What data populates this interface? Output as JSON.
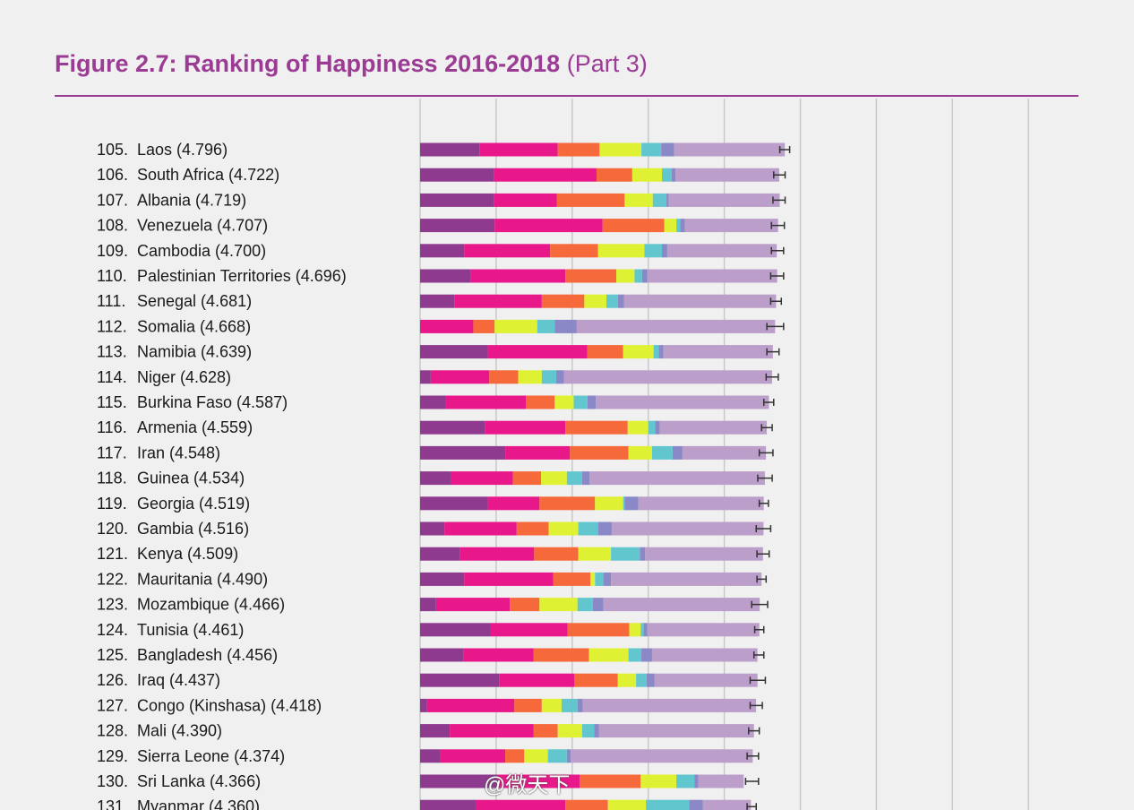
{
  "title": {
    "main": "Figure 2.7: Ranking of Happiness 2016-2018",
    "sub": "(Part 3)"
  },
  "colors": {
    "segments": [
      "#8e3a8e",
      "#e8178a",
      "#f5693a",
      "#dff133",
      "#62c6cf",
      "#8a88c6",
      "#bb9ec9"
    ],
    "errorbar": "#333333",
    "gridline": "#c8c8c8",
    "title": "#9b3b93"
  },
  "chart_data": {
    "type": "bar",
    "orientation": "horizontal",
    "stacked": true,
    "title": "Figure 2.7: Ranking of Happiness 2016-2018 (Part 3)",
    "xlim": [
      0,
      8
    ],
    "x_gridlines": [
      0,
      1,
      2,
      3,
      4,
      5,
      6,
      7,
      8
    ],
    "segment_order": [
      "dark-purple",
      "magenta",
      "orange",
      "yellow-green",
      "teal",
      "blue-violet",
      "lavender"
    ],
    "rows": [
      {
        "rank": "105.",
        "name": "Laos (4.796)",
        "score": 4.796,
        "segments": [
          0.78,
          1.03,
          0.55,
          0.55,
          0.26,
          0.17,
          1.456
        ],
        "ci": [
          4.73,
          4.86
        ]
      },
      {
        "rank": "106.",
        "name": "South Africa (4.722)",
        "score": 4.722,
        "segments": [
          0.97,
          1.35,
          0.47,
          0.39,
          0.13,
          0.05,
          1.362
        ],
        "ci": [
          4.65,
          4.8
        ]
      },
      {
        "rank": "107.",
        "name": "Albania (4.719)",
        "score": 4.719,
        "segments": [
          0.97,
          0.83,
          0.89,
          0.37,
          0.18,
          0.03,
          1.459
        ],
        "ci": [
          4.64,
          4.8
        ]
      },
      {
        "rank": "108.",
        "name": "Venezuela (4.707)",
        "score": 4.707,
        "segments": [
          0.98,
          1.42,
          0.81,
          0.16,
          0.05,
          0.06,
          1.227
        ],
        "ci": [
          4.62,
          4.79
        ]
      },
      {
        "rank": "109.",
        "name": "Cambodia (4.700)",
        "score": 4.7,
        "segments": [
          0.58,
          1.13,
          0.63,
          0.61,
          0.23,
          0.07,
          1.44
        ],
        "ci": [
          4.62,
          4.78
        ]
      },
      {
        "rank": "110.",
        "name": "Palestinian Territories (4.696)",
        "score": 4.696,
        "segments": [
          0.67,
          1.24,
          0.67,
          0.24,
          0.1,
          0.07,
          1.706
        ],
        "ci": [
          4.61,
          4.78
        ]
      },
      {
        "rank": "111.",
        "name": "Senegal (4.681)",
        "score": 4.681,
        "segments": [
          0.45,
          1.15,
          0.56,
          0.29,
          0.15,
          0.08,
          2.001
        ],
        "ci": [
          4.61,
          4.75
        ]
      },
      {
        "rank": "112.",
        "name": "Somalia (4.668)",
        "score": 4.668,
        "segments": [
          0.0,
          0.7,
          0.28,
          0.56,
          0.23,
          0.29,
          2.608
        ],
        "ci": [
          4.56,
          4.78
        ]
      },
      {
        "rank": "113.",
        "name": "Namibia (4.639)",
        "score": 4.639,
        "segments": [
          0.89,
          1.31,
          0.47,
          0.4,
          0.07,
          0.06,
          1.439
        ],
        "ci": [
          4.56,
          4.72
        ]
      },
      {
        "rank": "114.",
        "name": "Niger (4.628)",
        "score": 4.628,
        "segments": [
          0.14,
          0.77,
          0.38,
          0.31,
          0.19,
          0.1,
          2.738
        ],
        "ci": [
          4.55,
          4.71
        ]
      },
      {
        "rank": "115.",
        "name": "Burkina Faso (4.587)",
        "score": 4.587,
        "segments": [
          0.33,
          1.06,
          0.38,
          0.25,
          0.18,
          0.11,
          2.277
        ],
        "ci": [
          4.52,
          4.65
        ]
      },
      {
        "rank": "116.",
        "name": "Armenia (4.559)",
        "score": 4.559,
        "segments": [
          0.85,
          1.06,
          0.82,
          0.27,
          0.09,
          0.06,
          1.409
        ],
        "ci": [
          4.49,
          4.63
        ]
      },
      {
        "rank": "117.",
        "name": "Iran (4.548)",
        "score": 4.548,
        "segments": [
          1.12,
          0.85,
          0.77,
          0.31,
          0.27,
          0.13,
          1.098
        ],
        "ci": [
          4.46,
          4.64
        ]
      },
      {
        "rank": "118.",
        "name": "Guinea (4.534)",
        "score": 4.534,
        "segments": [
          0.4,
          0.82,
          0.37,
          0.34,
          0.2,
          0.1,
          2.304
        ],
        "ci": [
          4.44,
          4.63
        ]
      },
      {
        "rank": "119.",
        "name": "Georgia (4.519)",
        "score": 4.519,
        "segments": [
          0.89,
          0.68,
          0.73,
          0.37,
          0.02,
          0.18,
          1.649
        ],
        "ci": [
          4.46,
          4.58
        ]
      },
      {
        "rank": "120.",
        "name": "Gambia (4.516)",
        "score": 4.516,
        "segments": [
          0.32,
          0.95,
          0.42,
          0.39,
          0.26,
          0.18,
          1.996
        ],
        "ci": [
          4.42,
          4.61
        ]
      },
      {
        "rank": "121.",
        "name": "Kenya (4.509)",
        "score": 4.509,
        "segments": [
          0.52,
          0.98,
          0.58,
          0.43,
          0.38,
          0.07,
          1.549
        ],
        "ci": [
          4.43,
          4.59
        ]
      },
      {
        "rank": "122.",
        "name": "Mauritania (4.490)",
        "score": 4.49,
        "segments": [
          0.58,
          1.17,
          0.49,
          0.06,
          0.11,
          0.1,
          1.98
        ],
        "ci": [
          4.43,
          4.55
        ]
      },
      {
        "rank": "123.",
        "name": "Mozambique (4.466)",
        "score": 4.466,
        "segments": [
          0.21,
          0.97,
          0.39,
          0.5,
          0.2,
          0.14,
          2.056
        ],
        "ci": [
          4.36,
          4.57
        ]
      },
      {
        "rank": "124.",
        "name": "Tunisia (4.461)",
        "score": 4.461,
        "segments": [
          0.93,
          1.01,
          0.81,
          0.15,
          0.04,
          0.05,
          1.471
        ],
        "ci": [
          4.4,
          4.52
        ]
      },
      {
        "rank": "125.",
        "name": "Bangladesh (4.456)",
        "score": 4.456,
        "segments": [
          0.57,
          0.92,
          0.73,
          0.52,
          0.17,
          0.14,
          1.386
        ],
        "ci": [
          4.39,
          4.52
        ]
      },
      {
        "rank": "126.",
        "name": "Iraq (4.437)",
        "score": 4.437,
        "segments": [
          1.04,
          0.99,
          0.57,
          0.24,
          0.14,
          0.1,
          1.357
        ],
        "ci": [
          4.34,
          4.54
        ]
      },
      {
        "rank": "127.",
        "name": "Congo (Kinshasa) (4.418)",
        "score": 4.418,
        "segments": [
          0.09,
          1.15,
          0.36,
          0.26,
          0.21,
          0.07,
          2.278
        ],
        "ci": [
          4.34,
          4.5
        ]
      },
      {
        "rank": "128.",
        "name": "Mali (4.390)",
        "score": 4.39,
        "segments": [
          0.39,
          1.1,
          0.32,
          0.32,
          0.16,
          0.06,
          2.04
        ],
        "ci": [
          4.32,
          4.46
        ]
      },
      {
        "rank": "129.",
        "name": "Sierra Leone (4.374)",
        "score": 4.374,
        "segments": [
          0.27,
          0.85,
          0.25,
          0.31,
          0.25,
          0.05,
          2.394
        ],
        "ci": [
          4.3,
          4.45
        ]
      },
      {
        "rank": "130.",
        "name": "Sri Lanka (4.366)",
        "score": 4.366,
        "segments": [
          1.02,
          1.08,
          0.8,
          0.47,
          0.24,
          0.05,
          0.596
        ],
        "ci": [
          4.28,
          4.45
        ]
      },
      {
        "rank": "131.",
        "name": "Myanmar (4.360)",
        "score": 4.36,
        "segments": [
          0.73,
          1.18,
          0.56,
          0.5,
          0.57,
          0.18,
          0.63
        ],
        "ci": [
          4.3,
          4.42
        ]
      }
    ]
  },
  "watermark": "@微天下"
}
